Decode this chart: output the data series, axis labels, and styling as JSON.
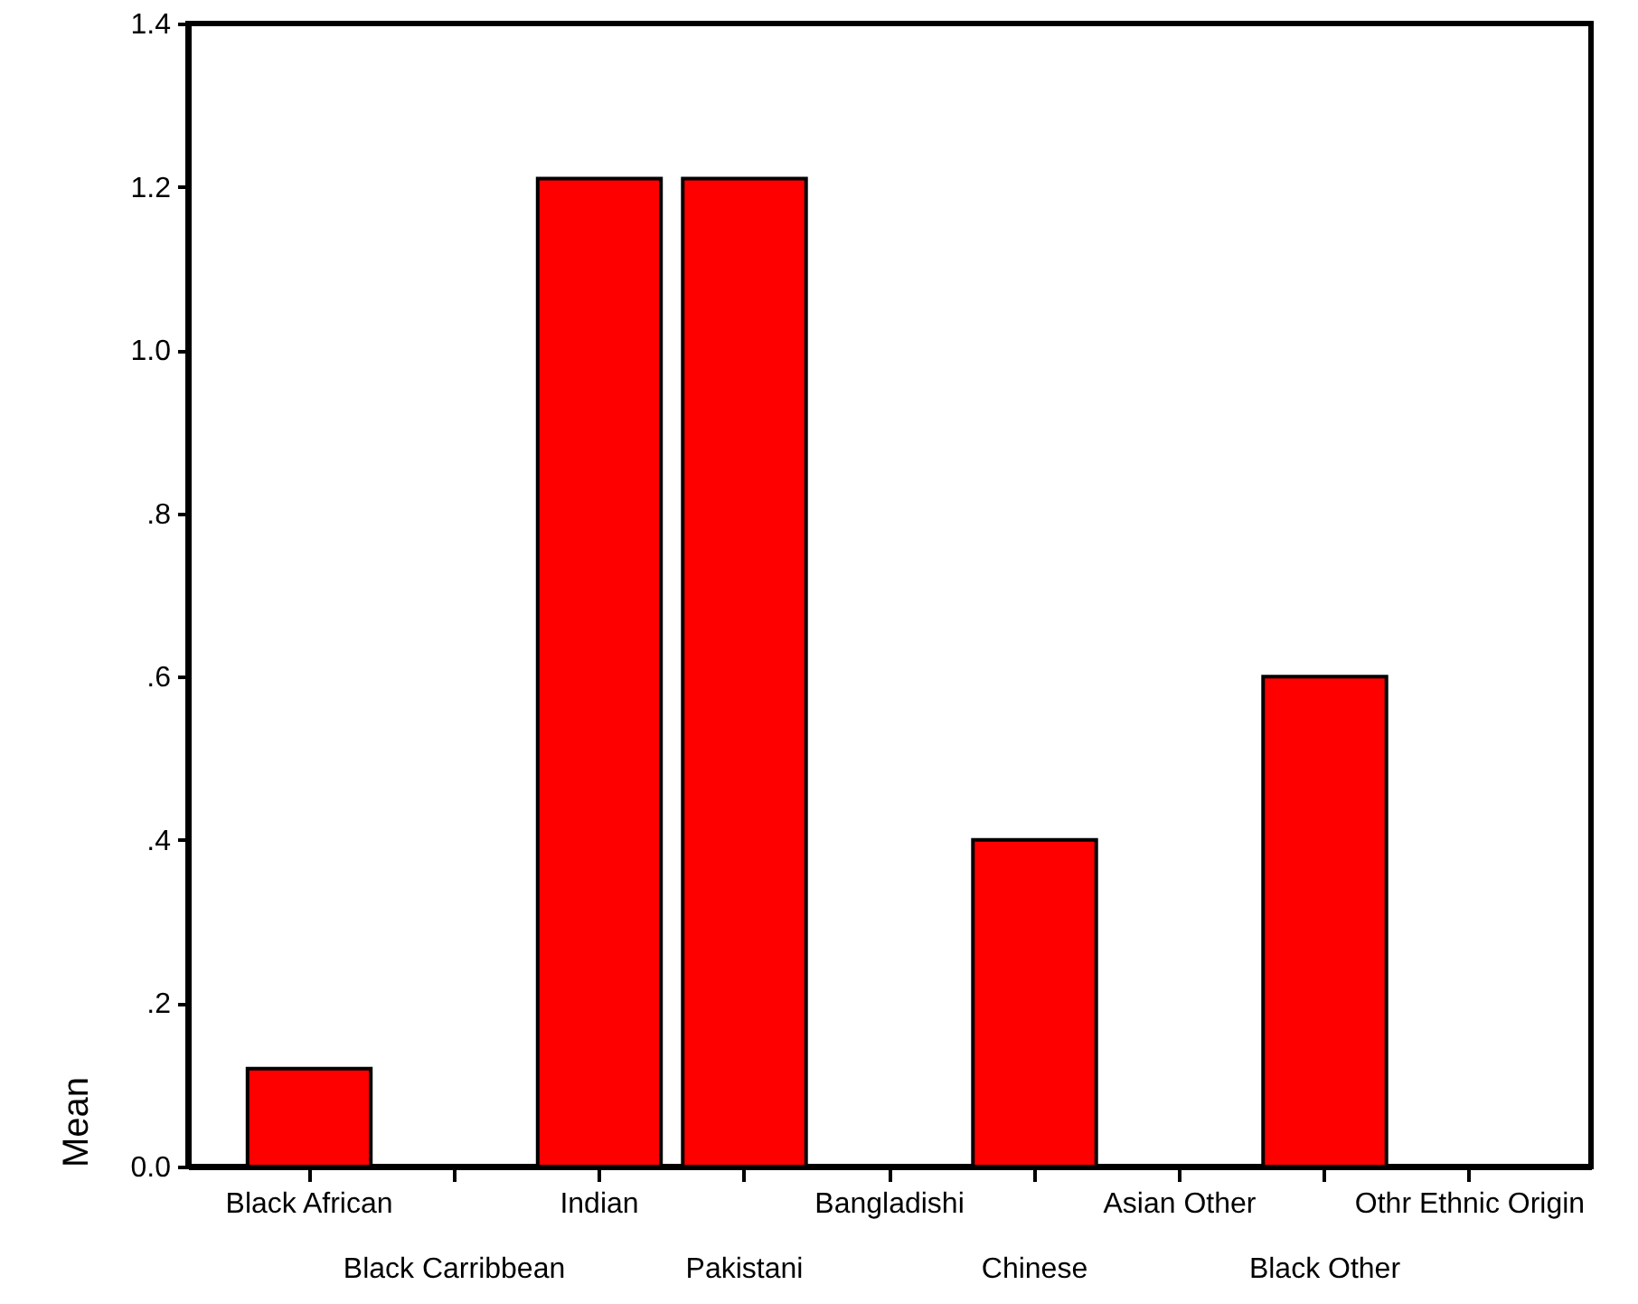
{
  "chart_data": {
    "type": "bar",
    "ylabel": "Mean",
    "categories": [
      "Black African",
      "Black Carribbean",
      "Indian",
      "Pakistani",
      "Bangladishi",
      "Chinese",
      "Asian Other",
      "Black Other",
      "Othr Ethnic Origin"
    ],
    "values": [
      0.12,
      0,
      1.21,
      1.21,
      0,
      0.4,
      0,
      0.6,
      0
    ],
    "color": "#ff0000",
    "ylim": [
      0,
      1.4
    ],
    "yticks": [
      {
        "value": 0,
        "label": "0.0"
      },
      {
        "value": 0.2,
        "label": ".2"
      },
      {
        "value": 0.4,
        "label": ".4"
      },
      {
        "value": 0.6,
        "label": ".6"
      },
      {
        "value": 0.8,
        "label": ".8"
      },
      {
        "value": 1.0,
        "label": "1.0"
      },
      1.2,
      1.4
    ],
    "grid": false
  }
}
